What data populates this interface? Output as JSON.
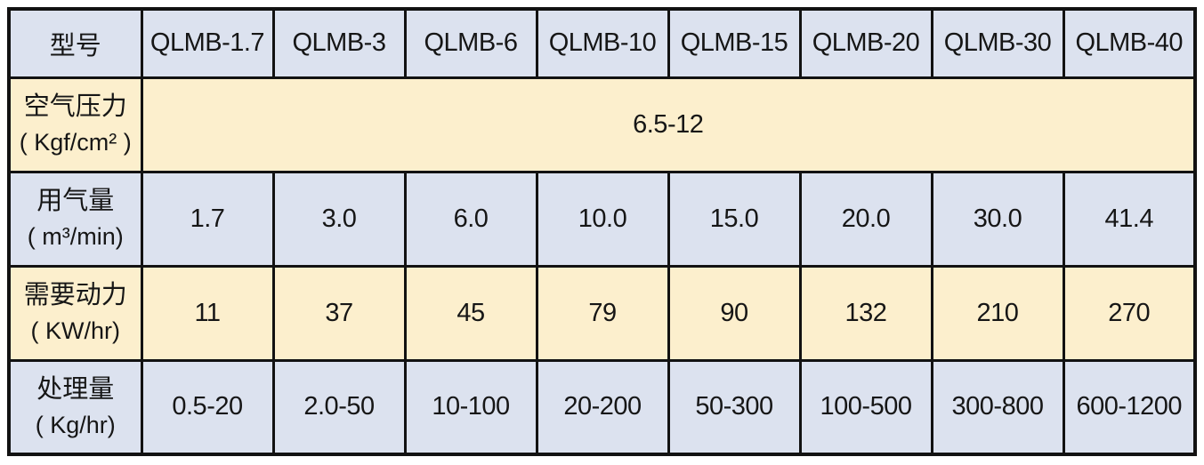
{
  "table": {
    "header": {
      "label": "型号",
      "models": [
        "QLMB-1.7",
        "QLMB-3",
        "QLMB-6",
        "QLMB-10",
        "QLMB-15",
        "QLMB-20",
        "QLMB-30",
        "QLMB-40"
      ]
    },
    "rows": [
      {
        "name": "空气压力",
        "unit": "( Kgf/cm² )",
        "merged_value": "6.5-12"
      },
      {
        "name": "用气量",
        "unit": "( m³/min)",
        "values": [
          "1.7",
          "3.0",
          "6.0",
          "10.0",
          "15.0",
          "20.0",
          "30.0",
          "41.4"
        ]
      },
      {
        "name": "需要动力",
        "unit": "( KW/hr)",
        "values": [
          "11",
          "37",
          "45",
          "79",
          "90",
          "132",
          "210",
          "270"
        ]
      },
      {
        "name": "处理量",
        "unit": "( Kg/hr)",
        "values": [
          "0.5-20",
          "2.0-50",
          "10-100",
          "20-200",
          "50-300",
          "100-500",
          "300-800",
          "600-1200"
        ]
      }
    ],
    "colors": {
      "row_blue": "#dce2ef",
      "row_cream": "#fcefcd",
      "border": "#121212",
      "text": "#161616",
      "page_background": "#ffffff"
    }
  }
}
